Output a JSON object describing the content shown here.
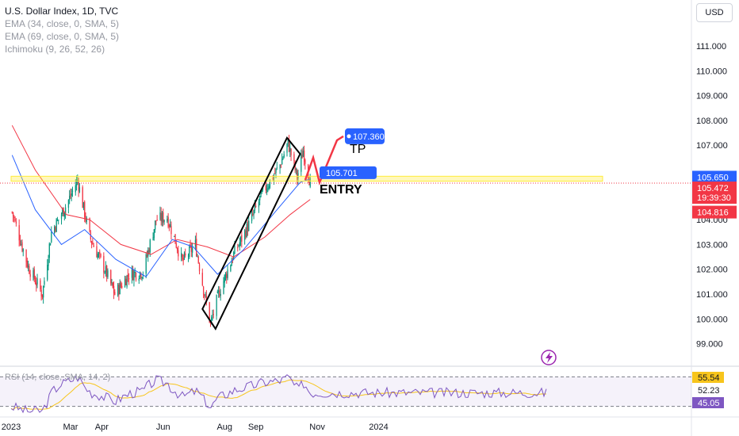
{
  "legend": {
    "title": "U.S. Dollar Index, 1D, TVC",
    "indicators": [
      "EMA (34, close, 0, SMA, 5)",
      "EMA (69, close, 0, SMA, 5)",
      "Ichimoku (9, 26, 52, 26)"
    ]
  },
  "currency_button": "USD",
  "rsi_legend": "RSI (14, close, SMA, 14, 2)",
  "colors": {
    "up": "#089981",
    "down": "#f23645",
    "ema_fast": "#2962ff",
    "ema_slow": "#f23645",
    "zone": "#ffeb3b",
    "rsi": "#7e57c2",
    "rsi_ma": "#f7c51c",
    "accent": "#2962ff"
  },
  "chart_data": [
    {
      "type": "candlestick",
      "x_ticks": [
        "2023",
        "Mar",
        "Apr",
        "Jun",
        "Aug",
        "Sep",
        "Nov",
        "2024"
      ],
      "y_ticks": [
        "111.000",
        "110.000",
        "109.000",
        "108.000",
        "107.000",
        "104.000",
        "103.000",
        "102.000",
        "101.000",
        "100.000",
        "99.000"
      ],
      "ylim": [
        98.5,
        111.8
      ],
      "close_path": [
        [
          "2023-01-02",
          104.3
        ],
        [
          "2023-01-18",
          102.1
        ],
        [
          "2023-02-01",
          101.0
        ],
        [
          "2023-02-10",
          103.5
        ],
        [
          "2023-02-25",
          104.6
        ],
        [
          "2023-03-08",
          105.6
        ],
        [
          "2023-03-20",
          103.3
        ],
        [
          "2023-04-05",
          101.9
        ],
        [
          "2023-04-14",
          101.0
        ],
        [
          "2023-04-28",
          101.8
        ],
        [
          "2023-05-12",
          101.9
        ],
        [
          "2023-05-25",
          104.0
        ],
        [
          "2023-06-05",
          104.1
        ],
        [
          "2023-06-20",
          102.3
        ],
        [
          "2023-07-03",
          103.0
        ],
        [
          "2023-07-12",
          101.0
        ],
        [
          "2023-07-18",
          99.8
        ],
        [
          "2023-07-26",
          101.0
        ],
        [
          "2023-08-10",
          102.6
        ],
        [
          "2023-08-25",
          103.8
        ],
        [
          "2023-09-08",
          105.1
        ],
        [
          "2023-09-25",
          106.2
        ],
        [
          "2023-10-03",
          107.1
        ],
        [
          "2023-10-12",
          105.7
        ],
        [
          "2023-10-18",
          106.8
        ],
        [
          "2023-10-25",
          105.47
        ]
      ],
      "ema34_path": [
        [
          "2023-01-02",
          106.6
        ],
        [
          "2023-01-25",
          104.4
        ],
        [
          "2023-02-20",
          103.0
        ],
        [
          "2023-03-15",
          103.6
        ],
        [
          "2023-04-15",
          102.4
        ],
        [
          "2023-05-15",
          101.7
        ],
        [
          "2023-06-10",
          103.2
        ],
        [
          "2023-07-01",
          102.9
        ],
        [
          "2023-07-25",
          101.8
        ],
        [
          "2023-08-20",
          102.8
        ],
        [
          "2023-09-20",
          104.3
        ],
        [
          "2023-10-15",
          105.5
        ],
        [
          "2023-10-25",
          105.65
        ]
      ],
      "ema69_path": [
        [
          "2023-01-02",
          107.8
        ],
        [
          "2023-01-25",
          106.0
        ],
        [
          "2023-02-25",
          104.2
        ],
        [
          "2023-03-20",
          104.0
        ],
        [
          "2023-04-20",
          103.0
        ],
        [
          "2023-05-20",
          102.6
        ],
        [
          "2023-06-15",
          103.2
        ],
        [
          "2023-07-15",
          102.9
        ],
        [
          "2023-08-10",
          102.5
        ],
        [
          "2023-09-10",
          103.3
        ],
        [
          "2023-10-05",
          104.2
        ],
        [
          "2023-10-25",
          104.816
        ]
      ],
      "price_labels": [
        {
          "value": 105.65,
          "text": "105.650",
          "kind": "ema_fast"
        },
        {
          "value": 105.472,
          "text": "105.472",
          "time": "19:39:30",
          "kind": "last"
        },
        {
          "value": 104.816,
          "text": "104.816",
          "kind": "ema_slow"
        }
      ],
      "annotations": [
        {
          "kind": "tp",
          "text": "TP",
          "value_label": "107.360",
          "value": 107.36
        },
        {
          "kind": "entry",
          "text": "ENTRY",
          "value_label": "105.701",
          "value": 105.701
        }
      ]
    },
    {
      "type": "line",
      "name": "RSI",
      "labels": [
        {
          "text": "55.54",
          "value": 55.54,
          "kind": "ma"
        },
        {
          "text": "52.23",
          "value": 52.23,
          "kind": "plain"
        },
        {
          "text": "45.05",
          "value": 45.05,
          "kind": "rsi"
        }
      ],
      "bands": [
        70,
        30
      ]
    }
  ]
}
